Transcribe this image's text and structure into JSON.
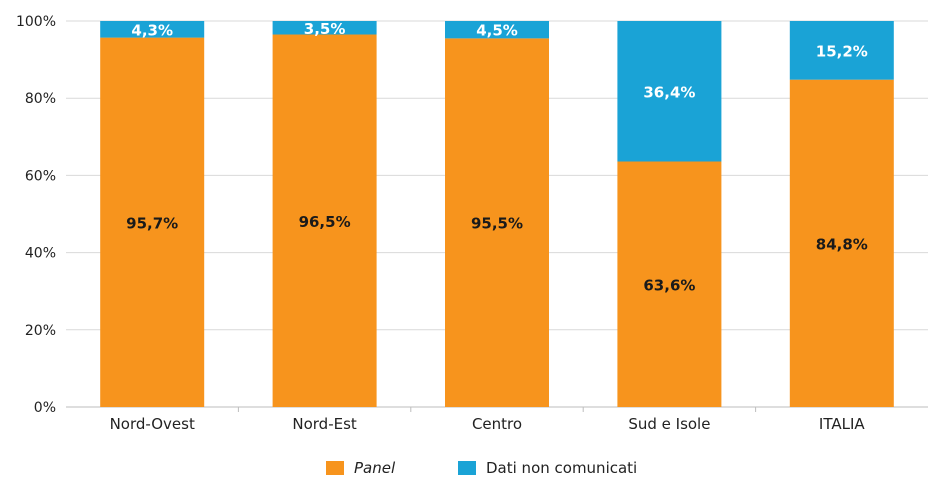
{
  "chart_data": {
    "type": "bar",
    "stacked": true,
    "categories": [
      "Nord-Ovest",
      "Nord-Est",
      "Centro",
      "Sud e Isole",
      "ITALIA"
    ],
    "series": [
      {
        "name": "Panel",
        "color": "#f7941d",
        "values": [
          95.7,
          96.5,
          95.5,
          63.6,
          84.8
        ],
        "labels": [
          "95,7%",
          "96,5%",
          "95,5%",
          "63,6%",
          "84,8%"
        ]
      },
      {
        "name": "Dati non comunicati",
        "color": "#1aa3d6",
        "values": [
          4.3,
          3.5,
          4.5,
          36.4,
          15.2
        ],
        "labels": [
          "4,3%",
          "3,5%",
          "4,5%",
          "36,4%",
          "15,2%"
        ]
      }
    ],
    "ylim": [
      0,
      100
    ],
    "yticks": [
      "0%",
      "20%",
      "40%",
      "60%",
      "80%",
      "100%"
    ],
    "xlabel": "",
    "ylabel": "",
    "grid": true,
    "legend_position": "bottom"
  }
}
